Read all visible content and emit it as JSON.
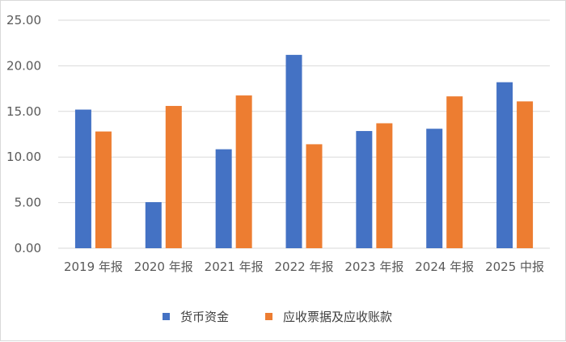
{
  "chart_data": {
    "type": "bar",
    "categories": [
      "2019 年报",
      "2020 年报",
      "2021 年报",
      "2022 年报",
      "2023 年报",
      "2024 年报",
      "2025 中报"
    ],
    "series": [
      {
        "name": "货币资金",
        "color": "#4472c4",
        "values": [
          15.2,
          5.05,
          10.85,
          21.2,
          12.85,
          13.1,
          18.2
        ]
      },
      {
        "name": "应收票据及应收账款",
        "color": "#ed7d31",
        "values": [
          12.8,
          15.6,
          16.75,
          11.4,
          13.7,
          16.65,
          16.1
        ]
      }
    ],
    "yticks": [
      "0.00",
      "5.00",
      "10.00",
      "15.00",
      "20.00",
      "25.00"
    ],
    "ylim": [
      0,
      25
    ],
    "grid": true,
    "legend_position": "bottom"
  }
}
